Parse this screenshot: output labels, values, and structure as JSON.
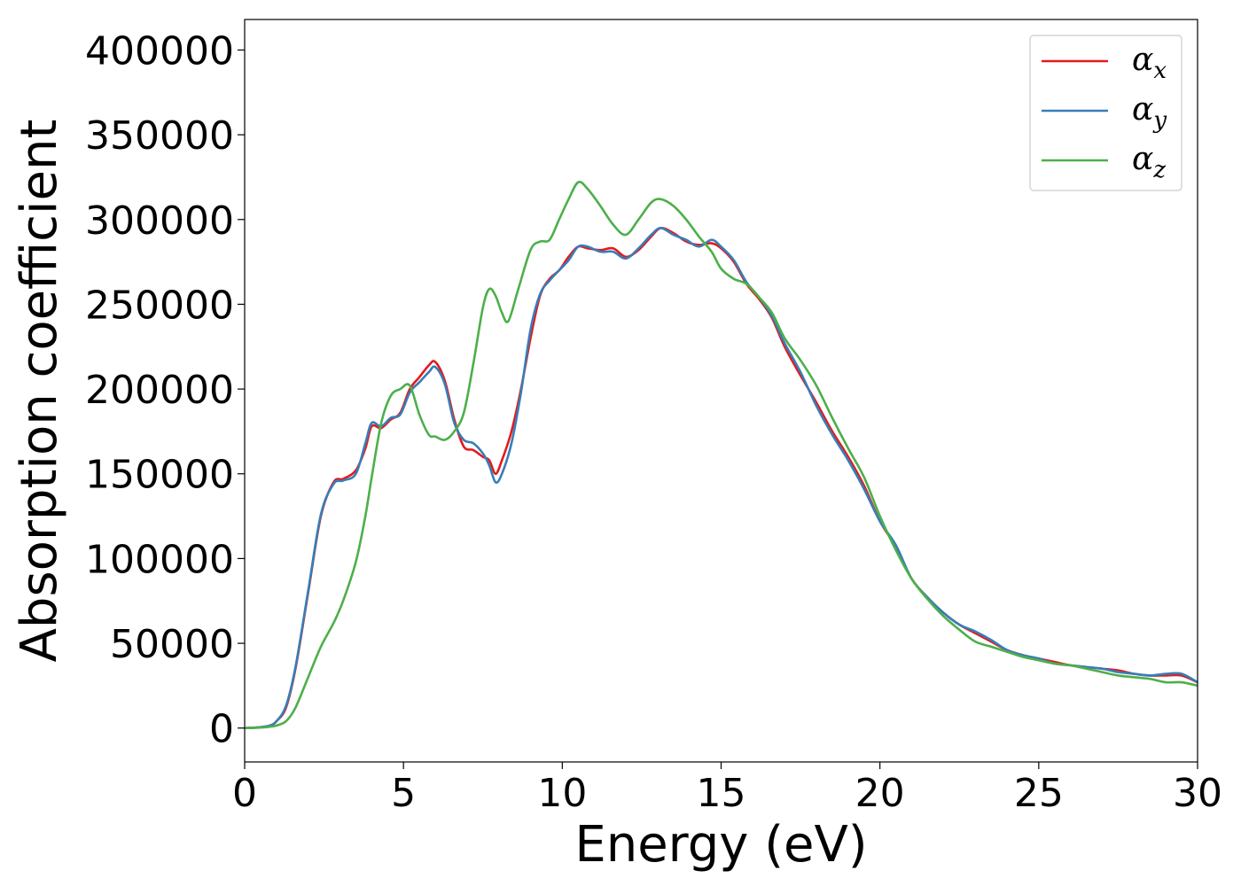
{
  "chart_data": {
    "type": "line",
    "title": "",
    "xlabel": "Energy (eV)",
    "ylabel": "Absorption coefficient",
    "xlim": [
      0,
      30
    ],
    "ylim": [
      -20000,
      418000
    ],
    "xticks": [
      0,
      5,
      10,
      15,
      20,
      25,
      30
    ],
    "yticks": [
      0,
      50000,
      100000,
      150000,
      200000,
      250000,
      300000,
      350000,
      400000
    ],
    "grid": false,
    "legend": "top-right",
    "series": [
      {
        "name": "α_x",
        "label_base": "α",
        "label_sub": "x",
        "color": "#e41a1c",
        "x": [
          0,
          0.5,
          0.8,
          1.0,
          1.3,
          1.6,
          2.0,
          2.4,
          2.8,
          3.1,
          3.5,
          3.8,
          4.0,
          4.3,
          4.6,
          4.9,
          5.2,
          5.5,
          5.8,
          6.0,
          6.3,
          6.6,
          6.9,
          7.2,
          7.5,
          7.7,
          7.9,
          8.1,
          8.4,
          8.7,
          9.0,
          9.3,
          9.6,
          9.9,
          10.2,
          10.5,
          10.8,
          11.2,
          11.6,
          12.0,
          12.4,
          12.8,
          13.1,
          13.5,
          13.9,
          14.3,
          14.7,
          15.0,
          15.4,
          15.8,
          16.2,
          16.6,
          17.0,
          17.5,
          18.0,
          18.5,
          19.0,
          19.5,
          20.0,
          20.5,
          21.0,
          21.5,
          22.0,
          22.5,
          23.0,
          23.5,
          24.0,
          24.5,
          25.0,
          25.5,
          26.0,
          26.5,
          27.0,
          27.5,
          28.0,
          28.5,
          29.0,
          29.5,
          30.0
        ],
        "y": [
          0,
          500,
          1500,
          4000,
          12000,
          35000,
          80000,
          125000,
          145000,
          147000,
          152000,
          165000,
          178000,
          177000,
          182000,
          186000,
          200000,
          207000,
          214000,
          216000,
          205000,
          182000,
          166000,
          164000,
          160000,
          158000,
          150000,
          158000,
          175000,
          200000,
          230000,
          255000,
          265000,
          270000,
          278000,
          284000,
          283000,
          282000,
          283000,
          278000,
          282000,
          290000,
          295000,
          292000,
          287000,
          285000,
          286000,
          283000,
          275000,
          262000,
          253000,
          242000,
          225000,
          208000,
          192000,
          175000,
          160000,
          143000,
          122000,
          107000,
          88000,
          77000,
          68000,
          61000,
          56000,
          51000,
          46000,
          43000,
          41000,
          39000,
          37000,
          36000,
          35000,
          34000,
          32000,
          31000,
          31000,
          31000,
          27000
        ]
      },
      {
        "name": "α_y",
        "label_base": "α",
        "label_sub": "y",
        "color": "#377eb8",
        "x": [
          0,
          0.5,
          0.8,
          1.0,
          1.3,
          1.6,
          2.0,
          2.4,
          2.8,
          3.1,
          3.5,
          3.8,
          4.0,
          4.3,
          4.6,
          4.9,
          5.2,
          5.5,
          5.8,
          6.0,
          6.3,
          6.6,
          6.9,
          7.2,
          7.5,
          7.7,
          7.9,
          8.1,
          8.4,
          8.7,
          9.0,
          9.3,
          9.6,
          9.9,
          10.2,
          10.5,
          10.8,
          11.2,
          11.6,
          12.0,
          12.4,
          12.8,
          13.1,
          13.5,
          13.9,
          14.3,
          14.7,
          15.0,
          15.4,
          15.8,
          16.2,
          16.6,
          17.0,
          17.5,
          18.0,
          18.5,
          19.0,
          19.5,
          20.0,
          20.5,
          21.0,
          21.5,
          22.0,
          22.5,
          23.0,
          23.5,
          24.0,
          24.5,
          25.0,
          25.5,
          26.0,
          26.5,
          27.0,
          27.5,
          28.0,
          28.5,
          29.0,
          29.5,
          30.0
        ],
        "y": [
          0,
          500,
          1500,
          4000,
          13000,
          36000,
          81000,
          126000,
          144000,
          146000,
          150000,
          168000,
          180000,
          178000,
          183000,
          185000,
          198000,
          204000,
          210000,
          213000,
          203000,
          180000,
          170000,
          168000,
          162000,
          155000,
          145000,
          150000,
          168000,
          198000,
          235000,
          256000,
          264000,
          270000,
          276000,
          284000,
          284000,
          281000,
          281000,
          277000,
          283000,
          291000,
          295000,
          291000,
          288000,
          284000,
          288000,
          284000,
          276000,
          263000,
          254000,
          243000,
          227000,
          210000,
          190000,
          173000,
          158000,
          141000,
          122000,
          108000,
          88000,
          77000,
          68000,
          61000,
          57000,
          52000,
          46000,
          43000,
          41000,
          38000,
          37000,
          36000,
          35000,
          33000,
          32000,
          31000,
          32000,
          32000,
          27000
        ]
      },
      {
        "name": "α_z",
        "label_base": "α",
        "label_sub": "z",
        "color": "#4daf4a",
        "x": [
          0,
          0.5,
          0.8,
          1.0,
          1.3,
          1.6,
          2.0,
          2.4,
          2.8,
          3.1,
          3.5,
          3.8,
          4.0,
          4.3,
          4.6,
          4.9,
          5.2,
          5.5,
          5.8,
          6.0,
          6.3,
          6.6,
          6.9,
          7.2,
          7.5,
          7.7,
          7.9,
          8.1,
          8.3,
          8.6,
          9.0,
          9.3,
          9.6,
          9.9,
          10.2,
          10.5,
          10.8,
          11.2,
          11.6,
          12.0,
          12.4,
          12.8,
          13.1,
          13.5,
          13.9,
          14.3,
          14.7,
          15.0,
          15.4,
          15.8,
          16.2,
          16.6,
          17.0,
          17.5,
          18.0,
          18.5,
          19.0,
          19.5,
          20.0,
          20.5,
          21.0,
          21.5,
          22.0,
          22.5,
          23.0,
          23.5,
          24.0,
          24.5,
          25.0,
          25.5,
          26.0,
          26.5,
          27.0,
          27.5,
          28.0,
          28.5,
          29.0,
          29.5,
          30.0
        ],
        "y": [
          0,
          300,
          800,
          1500,
          4000,
          12000,
          30000,
          48000,
          62000,
          75000,
          98000,
          125000,
          148000,
          180000,
          196000,
          200000,
          202000,
          185000,
          173000,
          172000,
          170000,
          175000,
          186000,
          215000,
          248000,
          259000,
          255000,
          245000,
          240000,
          258000,
          282000,
          287000,
          288000,
          300000,
          312000,
          322000,
          318000,
          308000,
          297000,
          291000,
          300000,
          310000,
          312000,
          308000,
          300000,
          290000,
          281000,
          271000,
          265000,
          262000,
          254000,
          245000,
          230000,
          217000,
          202000,
          183000,
          165000,
          148000,
          125000,
          105000,
          88000,
          76000,
          66000,
          58000,
          51000,
          48000,
          45000,
          42000,
          40000,
          38000,
          37000,
          35000,
          33000,
          31000,
          30000,
          29000,
          27000,
          27000,
          25000
        ]
      }
    ]
  }
}
